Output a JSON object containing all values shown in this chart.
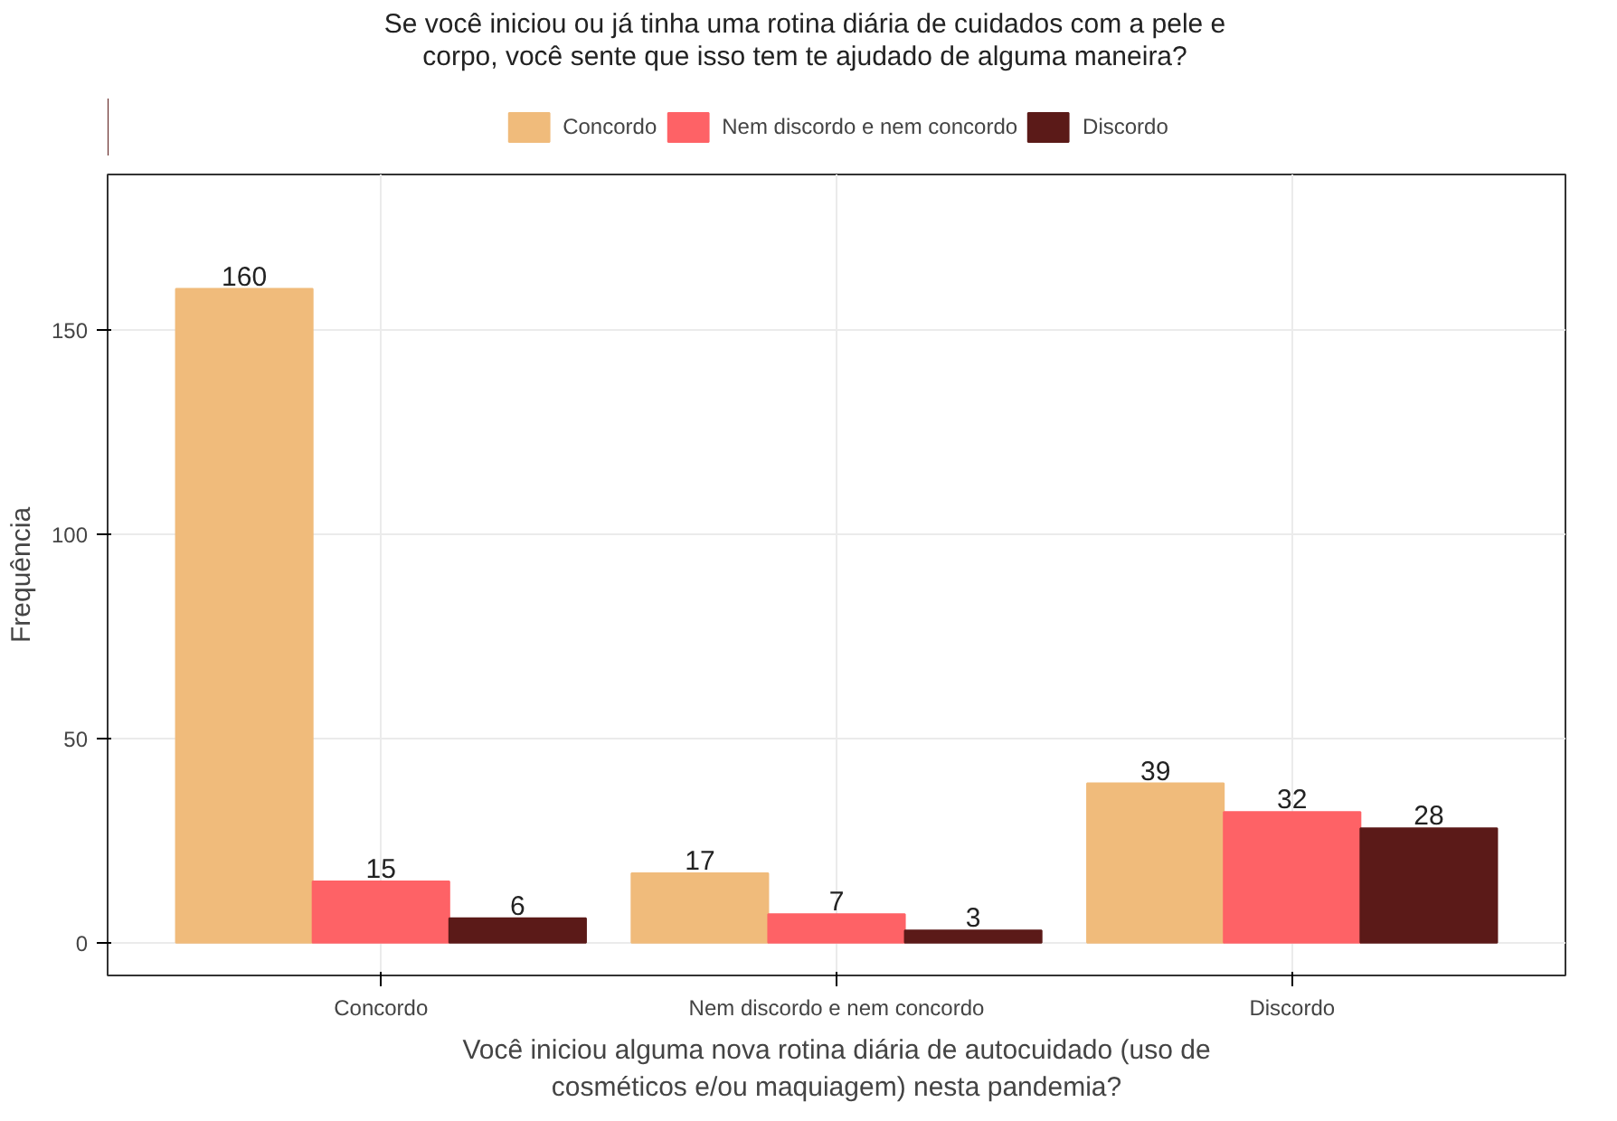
{
  "chart_data": {
    "type": "bar",
    "title": "Se você iniciou ou já tinha uma rotina diária de cuidados com a pele e\ncorpo, você sente que isso tem te ajudado de alguma maneira?",
    "xlabel": "Você iniciou alguma nova rotina diária de autocuidado (uso de\ncosméticos e/ou maquiagem) nesta pandemia?",
    "ylabel": "Frequência",
    "categories": [
      "Concordo",
      "Nem discordo e nem concordo",
      "Discordo"
    ],
    "series": [
      {
        "name": "Concordo",
        "color": "#f0bb7b",
        "values": [
          160,
          17,
          39
        ]
      },
      {
        "name": "Nem discordo e nem concordo",
        "color": "#fe6266",
        "values": [
          15,
          7,
          32
        ]
      },
      {
        "name": "Discordo",
        "color": "#5b1a18",
        "values": [
          6,
          3,
          28
        ]
      }
    ],
    "ylim": [
      -8,
      188
    ],
    "yticks": [
      0,
      50,
      100,
      150
    ],
    "grid": true,
    "legend": "top",
    "data_labels": true
  }
}
